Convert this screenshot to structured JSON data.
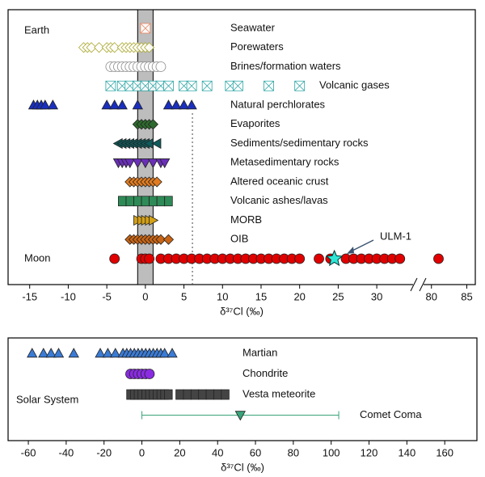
{
  "chart_data": [
    {
      "type": "strip",
      "group_label": "Earth",
      "xlabel": "δ³⁷Cl (‰)",
      "xlim": [
        -17.8,
        86.2
      ],
      "axis_break": [
        34.6,
        79
      ],
      "xticks": [
        -15,
        -10,
        -5,
        0,
        5,
        10,
        15,
        20,
        25,
        30,
        80,
        85
      ],
      "band": [
        -1,
        1
      ],
      "vline": 6.1,
      "series": [
        {
          "name": "Seawater",
          "color": "#e8825a",
          "shape": "square-x",
          "open": true,
          "values": [
            0
          ]
        },
        {
          "name": "Porewaters",
          "color": "#a9a62a",
          "shape": "diamond",
          "open": true,
          "values": [
            -8,
            -7.5,
            -7,
            -6,
            -5,
            -4.5,
            -4,
            -3,
            -2.5,
            -2,
            -1.5,
            -1,
            -0.5,
            0,
            0.5
          ]
        },
        {
          "name": "Brines/formation waters",
          "color": "#888888",
          "shape": "circle",
          "open": true,
          "values": [
            -4.5,
            -4,
            -3.5,
            -3,
            -2.5,
            -2,
            -1.5,
            -1,
            -0.5,
            0,
            0.5,
            1,
            1.5,
            2
          ]
        },
        {
          "name": "Volcanic gases",
          "color": "#2aa3a3",
          "shape": "square-x",
          "open": true,
          "values": [
            -4.5,
            -3,
            -2,
            -1,
            0,
            1,
            2,
            3,
            5,
            6,
            8,
            11,
            12,
            16,
            20
          ]
        },
        {
          "name": "Natural perchlorates",
          "color": "#1a2fbf",
          "shape": "triangle",
          "open": false,
          "values": [
            -14.5,
            -14,
            -13.5,
            -13,
            -12,
            -5,
            -4,
            -3,
            -1,
            3,
            4,
            5,
            6
          ]
        },
        {
          "name": "Evaporites",
          "color": "#2d6a2d",
          "shape": "diamond",
          "open": false,
          "values": [
            -1,
            -0.5,
            0,
            0.5,
            1
          ]
        },
        {
          "name": "Sediments/sedimentary rocks",
          "color": "#0f5a5a",
          "shape": "triangle-left",
          "open": false,
          "values": [
            -3.5,
            -3,
            -2.5,
            -2,
            -1.5,
            -1,
            -0.5,
            0,
            0.5,
            1.5
          ]
        },
        {
          "name": "Metasedimentary rocks",
          "color": "#6a2fb8",
          "shape": "triangle-down",
          "open": false,
          "values": [
            -3.5,
            -3,
            -2.5,
            -2,
            -1,
            0,
            1,
            2,
            2.5
          ]
        },
        {
          "name": "Altered oceanic crust",
          "color": "#e07b20",
          "shape": "diamond",
          "open": false,
          "values": [
            -2,
            -1.5,
            -1,
            -0.5,
            0,
            0.5,
            1,
            1.5
          ]
        },
        {
          "name": "Volcanic ashes/lavas",
          "color": "#2e8b57",
          "shape": "square",
          "open": false,
          "values": [
            -3,
            -2,
            -1,
            0,
            1,
            2,
            3
          ]
        },
        {
          "name": "MORB",
          "color": "#d4a017",
          "shape": "triangle-right",
          "open": false,
          "values": [
            -1,
            -0.5,
            0,
            0.5,
            1
          ]
        },
        {
          "name": "OIB",
          "color": "#c86414",
          "shape": "diamond",
          "open": false,
          "values": [
            -2,
            -1.5,
            -1,
            -0.5,
            0,
            0.5,
            1,
            1.5,
            2,
            3
          ]
        },
        {
          "name": "Moon",
          "color": "#e00000",
          "shape": "circle",
          "open": false,
          "values": [
            -4,
            -0.5,
            0,
            0.5,
            2,
            3,
            4,
            5,
            6,
            7,
            8,
            9,
            10,
            11,
            12,
            13,
            14,
            15,
            16,
            17,
            18,
            19,
            20,
            22.5,
            24,
            26,
            27,
            28,
            29,
            30,
            31,
            32,
            33,
            81
          ],
          "highlight": {
            "label": "ULM-1",
            "value": 24.5,
            "color": "#2ee6d6"
          }
        }
      ]
    },
    {
      "type": "strip",
      "group_label": "Solar System",
      "xlabel": "δ³⁷Cl (‰)",
      "xlim": [
        -70.7,
        177
      ],
      "xticks": [
        -60,
        -40,
        -20,
        0,
        20,
        40,
        60,
        80,
        100,
        120,
        140,
        160
      ],
      "series": [
        {
          "name": "Martian",
          "color": "#3a7bd5",
          "shape": "triangle",
          "open": false,
          "values": [
            -58,
            -52,
            -48,
            -44,
            -36,
            -22,
            -18,
            -14,
            -10,
            -8,
            -6,
            -4,
            -2,
            0,
            2,
            4,
            6,
            8,
            10,
            12,
            16
          ]
        },
        {
          "name": "Chondrite",
          "color": "#8a2be2",
          "shape": "circle",
          "open": false,
          "values": [
            -6,
            -4,
            -2,
            0,
            2,
            4
          ]
        },
        {
          "name": "Vesta meteorite",
          "color": "#444444",
          "shape": "square",
          "open": false,
          "values": [
            -6,
            -4,
            -2,
            0,
            2,
            4,
            6,
            8,
            10,
            12,
            14,
            20,
            24,
            28,
            32,
            36,
            40,
            44
          ]
        },
        {
          "name": "Comet Coma",
          "color": "#3aa37a",
          "shape": "triangle-down",
          "open": false,
          "values": [
            52
          ],
          "errors": [
            52
          ]
        }
      ]
    }
  ]
}
